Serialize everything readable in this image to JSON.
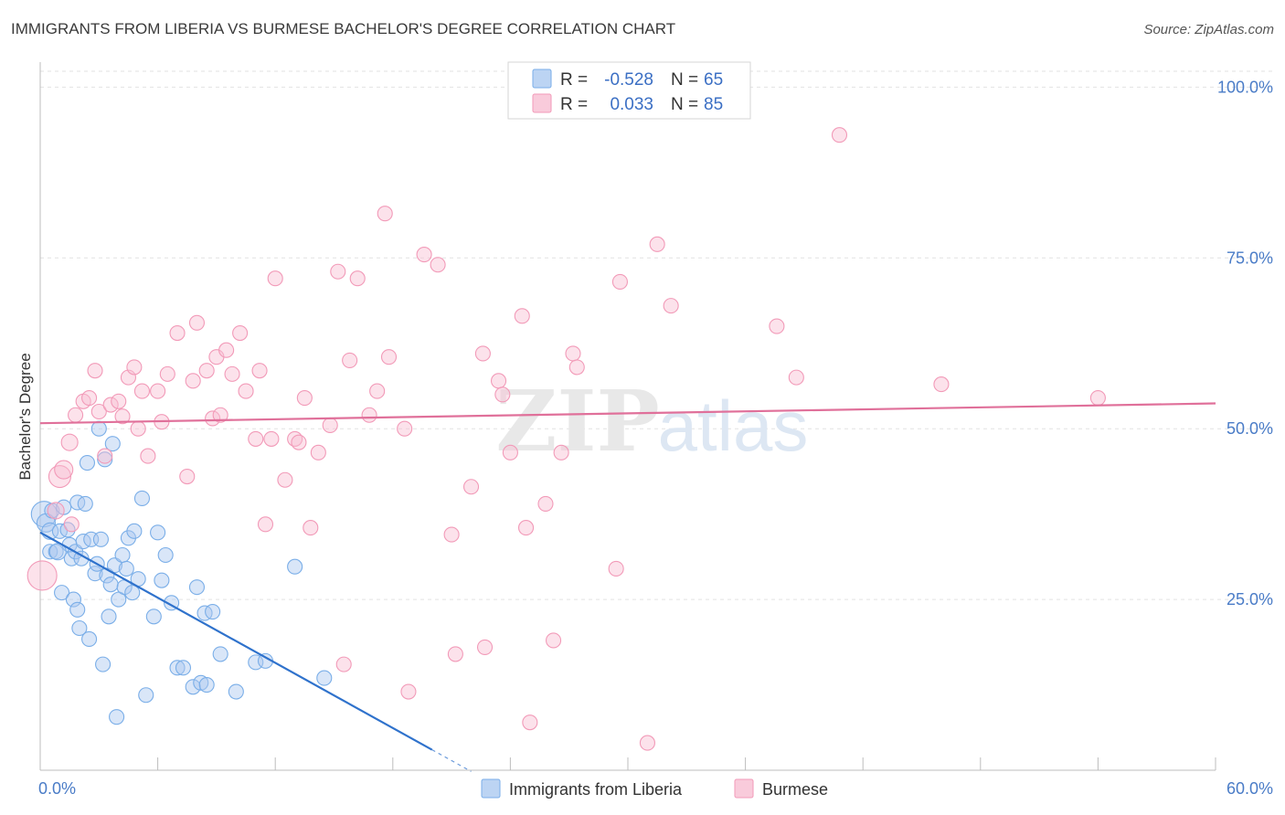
{
  "chart_data": {
    "type": "scatter",
    "title": "IMMIGRANTS FROM LIBERIA VS BURMESE BACHELOR'S DEGREE CORRELATION CHART",
    "source": "Source: ZipAtlas.com",
    "ylabel": "Bachelor's Degree",
    "xlim": [
      0,
      60
    ],
    "ylim": [
      0,
      105
    ],
    "x_tick_labels": [
      "0.0%",
      "60.0%"
    ],
    "y_ticks": [
      25,
      50,
      75,
      100
    ],
    "y_tick_labels": [
      "25.0%",
      "50.0%",
      "75.0%",
      "100.0%"
    ],
    "watermark": {
      "zip": "ZIP",
      "atlas": "atlas"
    },
    "legend": {
      "r_label": "R =",
      "n_label": "N =",
      "entries": [
        {
          "r": "-0.528",
          "n": "65"
        },
        {
          "r": "0.033",
          "n": "85"
        }
      ]
    },
    "series": [
      {
        "name": "Immigrants from Liberia",
        "color": "#7aaee8",
        "line_color": "#2f72cc",
        "trend": {
          "x0": 0,
          "y0": 34.8,
          "x1": 20,
          "y1": 3.0,
          "dash_to_x": 22
        },
        "points": [
          [
            0.2,
            37.5,
            14
          ],
          [
            0.3,
            36.2,
            10
          ],
          [
            0.5,
            35.0,
            9
          ],
          [
            0.5,
            32.0,
            8
          ],
          [
            0.6,
            38.0,
            8
          ],
          [
            0.8,
            32.0,
            8
          ],
          [
            1.0,
            35.0,
            8
          ],
          [
            1.1,
            26.0,
            8
          ],
          [
            1.2,
            38.5,
            8
          ],
          [
            1.4,
            35.2,
            8
          ],
          [
            1.5,
            33.0,
            8
          ],
          [
            1.6,
            31.0,
            8
          ],
          [
            1.7,
            25.0,
            8
          ],
          [
            1.8,
            32.0,
            8
          ],
          [
            1.9,
            39.2,
            8
          ],
          [
            1.9,
            23.5,
            8
          ],
          [
            2.0,
            20.8,
            8
          ],
          [
            2.2,
            33.5,
            8
          ],
          [
            2.3,
            39.0,
            8
          ],
          [
            2.4,
            45.0,
            8
          ],
          [
            2.5,
            19.2,
            8
          ],
          [
            2.6,
            33.8,
            8
          ],
          [
            2.8,
            28.8,
            8
          ],
          [
            2.9,
            30.2,
            8
          ],
          [
            3.0,
            50.0,
            8
          ],
          [
            3.1,
            33.8,
            8
          ],
          [
            3.2,
            15.5,
            8
          ],
          [
            3.3,
            45.5,
            8
          ],
          [
            3.4,
            28.5,
            8
          ],
          [
            3.5,
            22.5,
            8
          ],
          [
            3.6,
            27.2,
            8
          ],
          [
            3.7,
            47.8,
            8
          ],
          [
            3.8,
            30.0,
            8
          ],
          [
            3.9,
            7.8,
            8
          ],
          [
            4.0,
            25.0,
            8
          ],
          [
            4.2,
            31.5,
            8
          ],
          [
            4.3,
            26.8,
            8
          ],
          [
            4.4,
            29.5,
            8
          ],
          [
            4.5,
            34.0,
            8
          ],
          [
            4.7,
            26.0,
            8
          ],
          [
            4.8,
            35.0,
            8
          ],
          [
            5.0,
            28.0,
            8
          ],
          [
            5.2,
            39.8,
            8
          ],
          [
            5.4,
            11.0,
            8
          ],
          [
            5.8,
            22.5,
            8
          ],
          [
            6.0,
            34.8,
            8
          ],
          [
            6.2,
            27.8,
            8
          ],
          [
            6.4,
            31.5,
            8
          ],
          [
            6.7,
            24.5,
            8
          ],
          [
            7.0,
            15.0,
            8
          ],
          [
            7.3,
            15.0,
            8
          ],
          [
            7.8,
            12.2,
            8
          ],
          [
            8.0,
            26.8,
            8
          ],
          [
            8.2,
            12.8,
            8
          ],
          [
            8.4,
            23.0,
            8
          ],
          [
            8.5,
            12.5,
            8
          ],
          [
            8.8,
            23.2,
            8
          ],
          [
            9.2,
            17.0,
            8
          ],
          [
            10.0,
            11.5,
            8
          ],
          [
            11.0,
            15.8,
            8
          ],
          [
            11.5,
            16.0,
            8
          ],
          [
            13.0,
            29.8,
            8
          ],
          [
            14.5,
            13.5,
            8
          ],
          [
            0.9,
            32.0,
            9
          ],
          [
            2.1,
            31.0,
            8
          ]
        ]
      },
      {
        "name": "Burmese",
        "color": "#f29ab8",
        "line_color": "#e0709a",
        "trend": {
          "x0": 0,
          "y0": 50.8,
          "x1": 60,
          "y1": 53.7
        },
        "points": [
          [
            0.1,
            28.5,
            16
          ],
          [
            0.8,
            38.0,
            9
          ],
          [
            1.0,
            43.0,
            12
          ],
          [
            1.2,
            44.0,
            10
          ],
          [
            1.5,
            48.0,
            9
          ],
          [
            1.6,
            36.0,
            8
          ],
          [
            1.8,
            52.0,
            8
          ],
          [
            2.2,
            54.0,
            8
          ],
          [
            2.5,
            54.5,
            8
          ],
          [
            2.8,
            58.5,
            8
          ],
          [
            3.0,
            52.5,
            8
          ],
          [
            3.3,
            46.0,
            8
          ],
          [
            3.6,
            53.5,
            8
          ],
          [
            4.0,
            54.0,
            8
          ],
          [
            4.2,
            51.8,
            8
          ],
          [
            4.5,
            57.5,
            8
          ],
          [
            4.8,
            59.0,
            8
          ],
          [
            5.0,
            50.0,
            8
          ],
          [
            5.2,
            55.5,
            8
          ],
          [
            5.5,
            46.0,
            8
          ],
          [
            6.0,
            55.5,
            8
          ],
          [
            6.2,
            51.0,
            8
          ],
          [
            6.5,
            58.0,
            8
          ],
          [
            7.0,
            64.0,
            8
          ],
          [
            7.5,
            43.0,
            8
          ],
          [
            7.8,
            57.0,
            8
          ],
          [
            8.0,
            65.5,
            8
          ],
          [
            8.5,
            58.5,
            8
          ],
          [
            8.8,
            51.5,
            8
          ],
          [
            9.0,
            60.5,
            8
          ],
          [
            9.2,
            52.0,
            8
          ],
          [
            9.5,
            61.5,
            8
          ],
          [
            9.8,
            58.0,
            8
          ],
          [
            10.2,
            64.0,
            8
          ],
          [
            10.5,
            55.5,
            8
          ],
          [
            11.0,
            48.5,
            8
          ],
          [
            11.2,
            58.5,
            8
          ],
          [
            11.5,
            36.0,
            8
          ],
          [
            11.8,
            48.5,
            8
          ],
          [
            12.0,
            72.0,
            8
          ],
          [
            12.5,
            42.5,
            8
          ],
          [
            13.0,
            48.5,
            8
          ],
          [
            13.2,
            48.0,
            8
          ],
          [
            13.5,
            54.5,
            8
          ],
          [
            13.8,
            35.5,
            8
          ],
          [
            14.2,
            46.5,
            8
          ],
          [
            14.8,
            50.5,
            8
          ],
          [
            15.2,
            73.0,
            8
          ],
          [
            15.5,
            15.5,
            8
          ],
          [
            15.8,
            60.0,
            8
          ],
          [
            16.2,
            72.0,
            8
          ],
          [
            16.8,
            52.0,
            8
          ],
          [
            17.2,
            55.5,
            8
          ],
          [
            17.6,
            81.5,
            8
          ],
          [
            17.8,
            60.5,
            8
          ],
          [
            18.6,
            50.0,
            8
          ],
          [
            18.8,
            11.5,
            8
          ],
          [
            19.6,
            75.5,
            8
          ],
          [
            20.3,
            74.0,
            8
          ],
          [
            21.0,
            34.5,
            8
          ],
          [
            21.2,
            17.0,
            8
          ],
          [
            22.0,
            41.5,
            8
          ],
          [
            22.6,
            61.0,
            8
          ],
          [
            22.7,
            18.0,
            8
          ],
          [
            23.4,
            57.0,
            8
          ],
          [
            23.6,
            55.0,
            8
          ],
          [
            24.0,
            46.5,
            8
          ],
          [
            24.6,
            66.5,
            8
          ],
          [
            24.8,
            35.5,
            8
          ],
          [
            25.0,
            7.0,
            8
          ],
          [
            25.8,
            39.0,
            8
          ],
          [
            26.2,
            19.0,
            8
          ],
          [
            26.6,
            46.5,
            8
          ],
          [
            27.2,
            61.0,
            8
          ],
          [
            27.4,
            59.0,
            8
          ],
          [
            29.4,
            29.5,
            8
          ],
          [
            29.6,
            71.5,
            8
          ],
          [
            31.0,
            4.0,
            8
          ],
          [
            31.5,
            77.0,
            8
          ],
          [
            32.2,
            68.0,
            8
          ],
          [
            37.6,
            65.0,
            8
          ],
          [
            38.6,
            57.5,
            8
          ],
          [
            40.8,
            93.0,
            8
          ],
          [
            46.0,
            56.5,
            8
          ],
          [
            54.0,
            54.5,
            8
          ]
        ]
      }
    ]
  }
}
